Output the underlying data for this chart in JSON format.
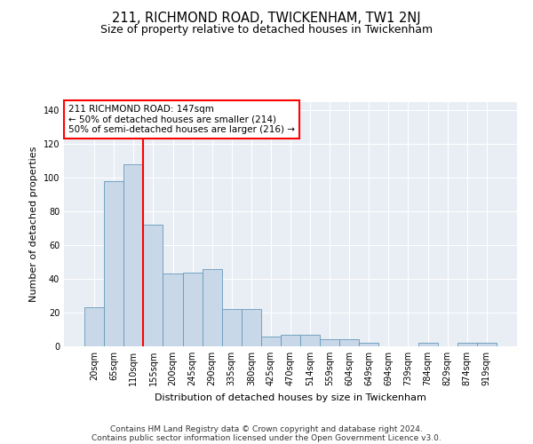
{
  "title": "211, RICHMOND ROAD, TWICKENHAM, TW1 2NJ",
  "subtitle": "Size of property relative to detached houses in Twickenham",
  "xlabel": "Distribution of detached houses by size in Twickenham",
  "ylabel": "Number of detached properties",
  "categories": [
    "20sqm",
    "65sqm",
    "110sqm",
    "155sqm",
    "200sqm",
    "245sqm",
    "290sqm",
    "335sqm",
    "380sqm",
    "425sqm",
    "470sqm",
    "514sqm",
    "559sqm",
    "604sqm",
    "649sqm",
    "694sqm",
    "739sqm",
    "784sqm",
    "829sqm",
    "874sqm",
    "919sqm"
  ],
  "values": [
    23,
    98,
    108,
    72,
    43,
    44,
    46,
    22,
    22,
    6,
    7,
    7,
    4,
    4,
    2,
    0,
    0,
    2,
    0,
    2,
    2
  ],
  "bar_color": "#c8d8e8",
  "bar_edge_color": "#6699bb",
  "vline_position": 2.5,
  "vline_color": "red",
  "annotation_text": "211 RICHMOND ROAD: 147sqm\n← 50% of detached houses are smaller (214)\n50% of semi-detached houses are larger (216) →",
  "annotation_box_color": "white",
  "annotation_box_edge": "red",
  "ylim": [
    0,
    145
  ],
  "yticks": [
    0,
    20,
    40,
    60,
    80,
    100,
    120,
    140
  ],
  "footer_line1": "Contains HM Land Registry data © Crown copyright and database right 2024.",
  "footer_line2": "Contains public sector information licensed under the Open Government Licence v3.0.",
  "bg_color": "#e8eef4",
  "fig_bg_color": "#ffffff",
  "title_fontsize": 10.5,
  "subtitle_fontsize": 9,
  "axis_label_fontsize": 8,
  "tick_fontsize": 7,
  "footer_fontsize": 6.5,
  "annotation_fontsize": 7.5
}
